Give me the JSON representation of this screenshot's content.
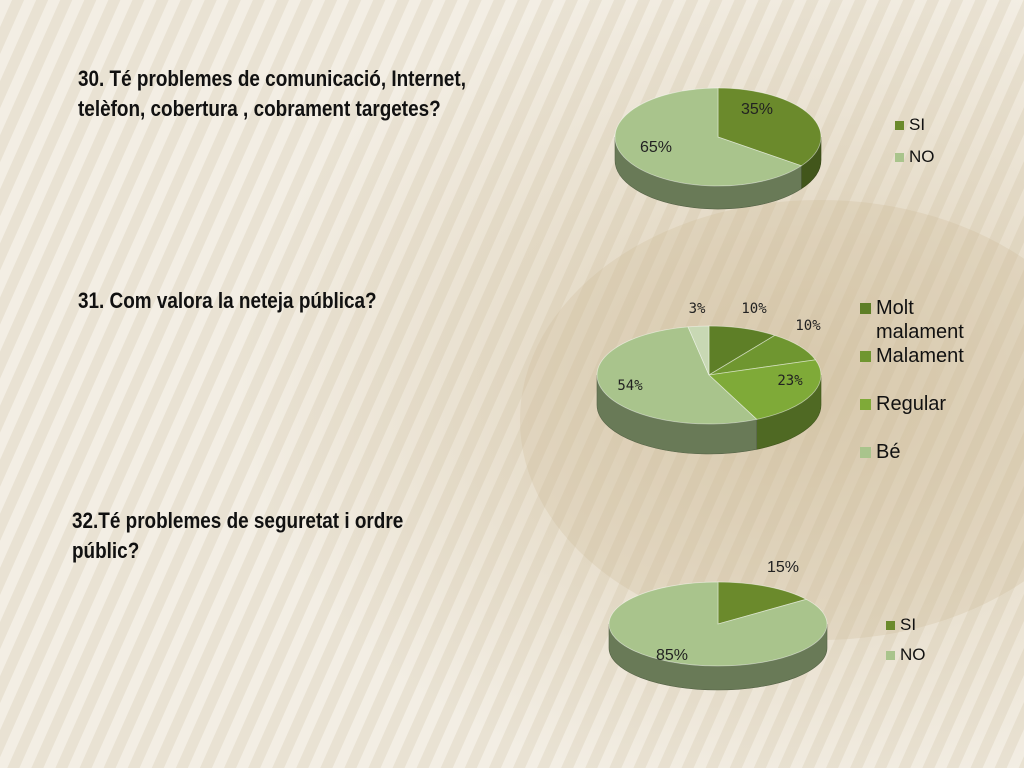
{
  "colors": {
    "background": "#e8e1d2",
    "stripe": "#f5f1e8",
    "slice_dark": "#6b8a2c",
    "slice_mid": "#7aa035",
    "slice_bright": "#8db83e",
    "slice_light": "#a9c48c",
    "slice_pale": "#c8d8b4"
  },
  "questions": {
    "q30": [
      "30. Té problemes de comunicació, Internet,",
      "telèfon, cobertura , cobrament targetes?"
    ],
    "q31": [
      "31. Com valora la neteja pública?"
    ],
    "q32": [
      "32.Té problemes de seguretat i ordre",
      "públic?"
    ]
  },
  "chart_data": [
    {
      "type": "pie",
      "title": "",
      "categories": [
        "SI",
        "NO"
      ],
      "values": [
        35,
        65
      ],
      "data_labels": [
        "35%",
        "65%"
      ],
      "colors": [
        "#6b8a2c",
        "#a9c48c"
      ],
      "legend": "right",
      "style": "3d"
    },
    {
      "type": "pie",
      "title": "",
      "categories": [
        "Molt malament",
        "Malament",
        "Regular",
        "Bé"
      ],
      "values": [
        10,
        10,
        23,
        54
      ],
      "data_labels": [
        "10%",
        "10%",
        "23%",
        "54%"
      ],
      "extra_slice": {
        "label": "3%",
        "value": 3
      },
      "colors": [
        "#5e7f27",
        "#6f9630",
        "#7faa38",
        "#a9c48c"
      ],
      "extra_color": "#c8d8b4",
      "legend": "right",
      "style": "3d"
    },
    {
      "type": "pie",
      "title": "",
      "categories": [
        "SI",
        "NO"
      ],
      "values": [
        15,
        85
      ],
      "data_labels": [
        "15%",
        "85%"
      ],
      "colors": [
        "#6b8a2c",
        "#a9c48c"
      ],
      "legend": "right",
      "style": "3d"
    }
  ]
}
